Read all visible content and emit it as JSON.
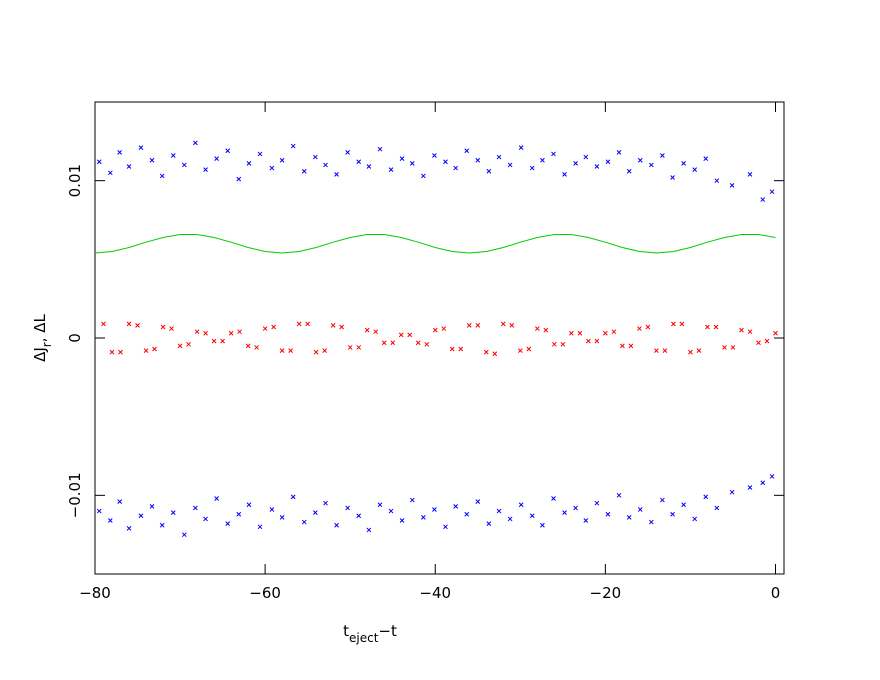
{
  "chart_data": {
    "type": "scatter",
    "xlabel": [
      "t",
      "eject",
      "−t"
    ],
    "ylabel": [
      "ΔJ",
      "r",
      ", ΔL"
    ],
    "xlim": [
      -80,
      1
    ],
    "ylim": [
      -0.015,
      0.015
    ],
    "xticks": [
      {
        "value": -80,
        "label": "−80"
      },
      {
        "value": -60,
        "label": "−60"
      },
      {
        "value": -40,
        "label": "−40"
      },
      {
        "value": -20,
        "label": "−20"
      },
      0
    ],
    "yticks": [
      {
        "value": -0.01,
        "label": "−0.01"
      },
      0,
      0.01
    ],
    "series": [
      {
        "kind": "points",
        "color": "#0000ff",
        "x": [
          -79.5,
          -78.2,
          -77.1,
          -76.0,
          -74.6,
          -73.3,
          -72.1,
          -70.8,
          -69.5,
          -68.2,
          -67.0,
          -65.7,
          -64.4,
          -63.1,
          -61.9,
          -60.6,
          -59.2,
          -58.0,
          -56.7,
          -55.4,
          -54.1,
          -52.9,
          -51.6,
          -50.3,
          -49.0,
          -47.8,
          -46.5,
          -45.2,
          -43.9,
          -42.7,
          -41.4,
          -40.1,
          -38.8,
          -37.6,
          -36.3,
          -35.0,
          -33.7,
          -32.5,
          -31.2,
          -29.9,
          -28.6,
          -27.4,
          -26.1,
          -24.8,
          -23.5,
          -22.3,
          -21.0,
          -19.7,
          -18.4,
          -17.2,
          -15.9,
          -14.6,
          -13.3,
          -12.1,
          -10.8,
          -9.5,
          -8.2,
          -6.9,
          -5.1,
          -3.0,
          -1.5,
          -0.4
        ],
        "values": [
          0.0112,
          0.0105,
          0.0118,
          0.0109,
          0.0121,
          0.0113,
          0.0103,
          0.0116,
          0.011,
          0.0124,
          0.0107,
          0.0114,
          0.0119,
          0.0101,
          0.0111,
          0.0117,
          0.0108,
          0.0113,
          0.0122,
          0.0106,
          0.0115,
          0.011,
          0.0104,
          0.0118,
          0.0112,
          0.0109,
          0.012,
          0.0107,
          0.0114,
          0.0111,
          0.0103,
          0.0116,
          0.0112,
          0.0108,
          0.0119,
          0.0113,
          0.0106,
          0.0115,
          0.011,
          0.0121,
          0.0108,
          0.0113,
          0.0117,
          0.0104,
          0.0111,
          0.0115,
          0.0109,
          0.0112,
          0.0118,
          0.0106,
          0.0113,
          0.011,
          0.0116,
          0.0102,
          0.0111,
          0.0107,
          0.0114,
          0.01,
          0.0097,
          0.0104,
          0.0088,
          0.0093
        ]
      },
      {
        "kind": "points",
        "color": "#0000ff",
        "x": [
          -79.5,
          -78.2,
          -77.1,
          -76.0,
          -74.6,
          -73.3,
          -72.1,
          -70.8,
          -69.5,
          -68.2,
          -67.0,
          -65.7,
          -64.4,
          -63.1,
          -61.9,
          -60.6,
          -59.2,
          -58.0,
          -56.7,
          -55.4,
          -54.1,
          -52.9,
          -51.6,
          -50.3,
          -49.0,
          -47.8,
          -46.5,
          -45.2,
          -43.9,
          -42.7,
          -41.4,
          -40.1,
          -38.8,
          -37.6,
          -36.3,
          -35.0,
          -33.7,
          -32.5,
          -31.2,
          -29.9,
          -28.6,
          -27.4,
          -26.1,
          -24.8,
          -23.5,
          -22.3,
          -21.0,
          -19.7,
          -18.4,
          -17.2,
          -15.9,
          -14.6,
          -13.3,
          -12.1,
          -10.8,
          -9.5,
          -8.2,
          -6.9,
          -5.1,
          -3.0,
          -1.5,
          -0.4
        ],
        "values": [
          -0.011,
          -0.0116,
          -0.0104,
          -0.0121,
          -0.0113,
          -0.0107,
          -0.0119,
          -0.0111,
          -0.0125,
          -0.0108,
          -0.0115,
          -0.0102,
          -0.0118,
          -0.0112,
          -0.0106,
          -0.012,
          -0.0109,
          -0.0114,
          -0.0101,
          -0.0117,
          -0.0111,
          -0.0105,
          -0.0119,
          -0.0108,
          -0.0113,
          -0.0122,
          -0.0106,
          -0.011,
          -0.0116,
          -0.0103,
          -0.0114,
          -0.0109,
          -0.012,
          -0.0107,
          -0.0112,
          -0.0104,
          -0.0118,
          -0.011,
          -0.0115,
          -0.0106,
          -0.0113,
          -0.0119,
          -0.0102,
          -0.0111,
          -0.0108,
          -0.0116,
          -0.0105,
          -0.0112,
          -0.01,
          -0.0114,
          -0.0109,
          -0.0117,
          -0.0103,
          -0.0112,
          -0.0106,
          -0.0115,
          -0.0101,
          -0.0108,
          -0.0098,
          -0.0095,
          -0.0092,
          -0.0088
        ]
      },
      {
        "kind": "points",
        "color": "#ff0000",
        "x": [
          -79,
          -77,
          -75,
          -73,
          -71,
          -69,
          -67,
          -65,
          -63,
          -61,
          -59,
          -57,
          -55,
          -53,
          -51,
          -49,
          -47,
          -45,
          -43,
          -41,
          -39,
          -37,
          -35,
          -33,
          -31,
          -29,
          -27,
          -25,
          -23,
          -21,
          -19,
          -17,
          -15,
          -13,
          -11,
          -9,
          -7,
          -5,
          -3,
          -1,
          -78,
          -76,
          -74,
          -72,
          -70,
          -68,
          -66,
          -64,
          -62,
          -60,
          -58,
          -56,
          -54,
          -52,
          -50,
          -48,
          -46,
          -44,
          -42,
          -40,
          -38,
          -36,
          -34,
          -32,
          -30,
          -28,
          -26,
          -24,
          -22,
          -20,
          -18,
          -16,
          -14,
          -12,
          -10,
          -8,
          -6,
          -4,
          -2,
          0
        ],
        "values": [
          0.0009,
          -0.0009,
          0.0008,
          -0.0007,
          0.0006,
          -0.0004,
          0.0003,
          -0.0002,
          0.0004,
          -0.0006,
          0.0007,
          -0.0008,
          0.0009,
          -0.0008,
          0.0007,
          -0.0006,
          0.0004,
          -0.0003,
          0.0002,
          -0.0004,
          0.0006,
          -0.0007,
          0.0008,
          -0.001,
          0.0008,
          -0.0007,
          0.0005,
          -0.0004,
          0.0003,
          -0.0002,
          0.0004,
          -0.0005,
          0.0007,
          -0.0008,
          0.0009,
          -0.0008,
          0.0007,
          -0.0006,
          0.0004,
          -0.0002,
          -0.0009,
          0.0009,
          -0.0008,
          0.0007,
          -0.0005,
          0.0004,
          -0.0002,
          0.0003,
          -0.0005,
          0.0006,
          -0.0008,
          0.0009,
          -0.0009,
          0.0008,
          -0.0006,
          0.0005,
          -0.0003,
          0.0002,
          -0.0003,
          0.0005,
          -0.0007,
          0.0008,
          -0.0009,
          0.0009,
          -0.0008,
          0.0006,
          -0.0004,
          0.0003,
          -0.0002,
          0.0003,
          -0.0005,
          0.0006,
          -0.0008,
          0.0009,
          -0.0009,
          0.0007,
          -0.0006,
          0.0005,
          -0.0003,
          0.0003
        ]
      },
      {
        "kind": "line",
        "color": "#00cc00",
        "x": [
          -80,
          -78,
          -76,
          -74,
          -72,
          -70,
          -68,
          -66,
          -64,
          -62,
          -60,
          -58,
          -56,
          -54,
          -52,
          -50,
          -48,
          -46,
          -44,
          -42,
          -40,
          -38,
          -36,
          -34,
          -32,
          -30,
          -28,
          -26,
          -24,
          -22,
          -20,
          -18,
          -16,
          -14,
          -12,
          -10,
          -8,
          -6,
          -4,
          -2,
          0
        ],
        "values": [
          0.0054,
          0.0055,
          0.00575,
          0.00609,
          0.00639,
          0.00658,
          0.00658,
          0.00639,
          0.00609,
          0.00575,
          0.0055,
          0.0054,
          0.0055,
          0.00575,
          0.00609,
          0.00639,
          0.00658,
          0.00658,
          0.00639,
          0.00609,
          0.00575,
          0.0055,
          0.0054,
          0.0055,
          0.00575,
          0.00609,
          0.00639,
          0.00658,
          0.00658,
          0.00639,
          0.00609,
          0.00575,
          0.0055,
          0.0054,
          0.0055,
          0.00575,
          0.00609,
          0.00639,
          0.00658,
          0.00658,
          0.00639
        ]
      }
    ]
  }
}
